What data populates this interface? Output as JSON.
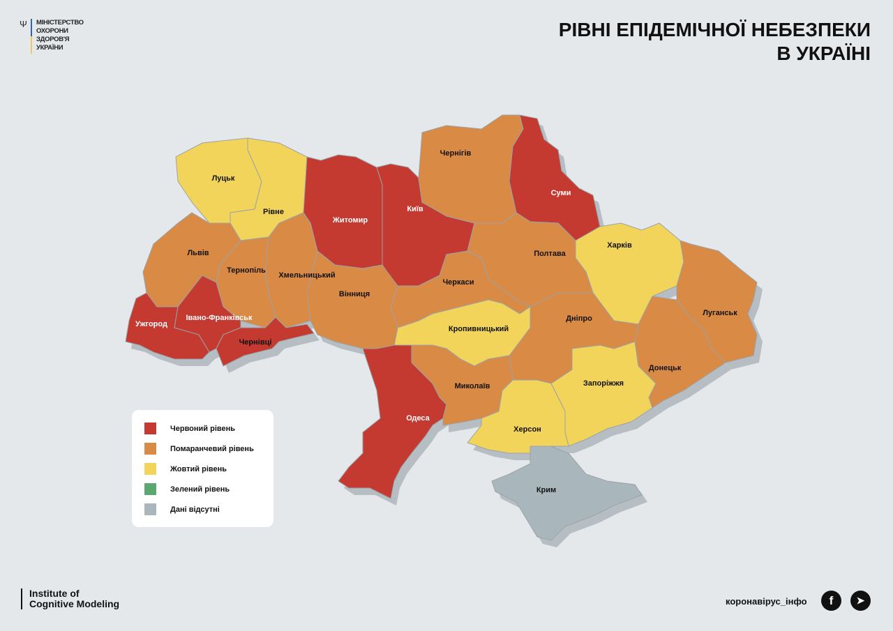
{
  "logo": {
    "lines": [
      "МІНІСТЕРСТВО",
      "ОХОРОНИ",
      "ЗДОРОВ'Я",
      "УКРАЇНИ"
    ]
  },
  "title": {
    "line1": "РІВНІ ЕПІДЕМІЧНОЇ НЕБЕЗПЕКИ",
    "line2": "В УКРАЇНІ"
  },
  "colors": {
    "red": "#c43a31",
    "orange": "#d98a45",
    "yellow": "#f2d45a",
    "green": "#5aa870",
    "gray": "#a9b7bd",
    "shadow": "#b6bec3",
    "border": "#9aa3a8"
  },
  "regions": [
    {
      "name": "Луцьк",
      "level": "yellow"
    },
    {
      "name": "Рівне",
      "level": "yellow"
    },
    {
      "name": "Житомир",
      "level": "red"
    },
    {
      "name": "Київ",
      "level": "red"
    },
    {
      "name": "Чернігів",
      "level": "orange"
    },
    {
      "name": "Суми",
      "level": "red"
    },
    {
      "name": "Харків",
      "level": "yellow"
    },
    {
      "name": "Луганськ",
      "level": "orange"
    },
    {
      "name": "Донецьк",
      "level": "orange"
    },
    {
      "name": "Запоріжжя",
      "level": "yellow"
    },
    {
      "name": "Дніпро",
      "level": "orange"
    },
    {
      "name": "Полтава",
      "level": "orange"
    },
    {
      "name": "Черкаси",
      "level": "orange"
    },
    {
      "name": "Кропивницький",
      "level": "yellow"
    },
    {
      "name": "Вінниця",
      "level": "orange"
    },
    {
      "name": "Хмельницький",
      "level": "orange"
    },
    {
      "name": "Тернопіль",
      "level": "orange"
    },
    {
      "name": "Львів",
      "level": "orange"
    },
    {
      "name": "Ужгород",
      "level": "red"
    },
    {
      "name": "Івано-Франківськ",
      "level": "red"
    },
    {
      "name": "Чернівці",
      "level": "red"
    },
    {
      "name": "Одеса",
      "level": "red"
    },
    {
      "name": "Миколаїв",
      "level": "orange"
    },
    {
      "name": "Херсон",
      "level": "yellow"
    },
    {
      "name": "Крим",
      "level": "gray"
    }
  ],
  "legend": [
    {
      "label": "Червоний рівень",
      "level": "red"
    },
    {
      "label": "Помаранчевий рівень",
      "level": "orange"
    },
    {
      "label": "Жовтий рівень",
      "level": "yellow"
    },
    {
      "label": "Зелений рівень",
      "level": "green"
    },
    {
      "label": "Дані відсутні",
      "level": "gray"
    }
  ],
  "footer": {
    "institute_line1": "Institute of",
    "institute_line2": "Cognitive Modeling",
    "site": "коронавірус_інфо",
    "icons": [
      "facebook-icon",
      "telegram-icon"
    ]
  }
}
